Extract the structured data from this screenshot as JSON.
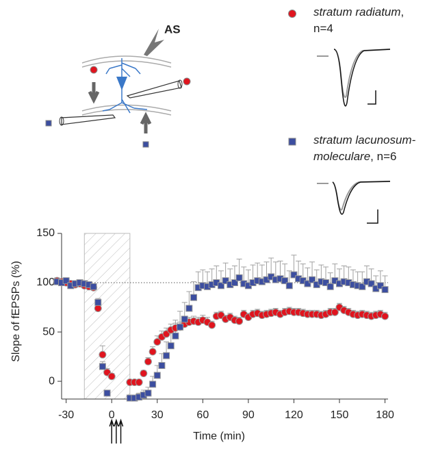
{
  "chart_data": {
    "type": "scatter",
    "y_label": "Slope of fEPSPs (%)",
    "x_label": "Time (min)",
    "schematic_label": "AS",
    "legend_separator": ",",
    "xlim": [
      -33,
      182
    ],
    "ylim": [
      -18,
      150
    ],
    "xticks": [
      -30,
      0,
      30,
      60,
      90,
      120,
      150,
      180
    ],
    "yticks": [
      0,
      50,
      100,
      150
    ],
    "reference_line": 100,
    "highlight_x": [
      -18,
      12
    ],
    "arrows_x": [
      0,
      3,
      6
    ],
    "x": [
      -36,
      -33,
      -30,
      -27,
      -24,
      -21,
      -18,
      -15,
      -12,
      -9,
      -6,
      -3,
      0,
      3,
      6,
      9,
      12,
      15,
      18,
      21,
      24,
      27,
      30,
      33,
      36,
      39,
      42,
      45,
      48,
      51,
      54,
      57,
      60,
      63,
      66,
      69,
      72,
      75,
      78,
      81,
      84,
      87,
      90,
      93,
      96,
      99,
      102,
      105,
      108,
      111,
      114,
      117,
      120,
      123,
      126,
      129,
      132,
      135,
      138,
      141,
      144,
      147,
      150,
      153,
      156,
      159,
      162,
      165,
      168,
      171,
      174,
      177,
      180
    ],
    "series": [
      {
        "name": "stratum radiatum",
        "n": "n=4",
        "color": "#e0141e",
        "marker": "circle",
        "values": [
          102,
          101,
          100,
          99,
          98,
          99,
          97,
          96,
          95,
          74,
          27,
          9,
          5,
          null,
          null,
          null,
          -1,
          -1,
          -1,
          8,
          20,
          30,
          40,
          45,
          48,
          52,
          54,
          55,
          58,
          60,
          61,
          60,
          62,
          60,
          57,
          66,
          67,
          63,
          65,
          62,
          61,
          68,
          65,
          68,
          69,
          67,
          68,
          69,
          70,
          68,
          70,
          71,
          70,
          70,
          69,
          68,
          68,
          68,
          67,
          68,
          70,
          70,
          75,
          72,
          70,
          68,
          67,
          68,
          67,
          66,
          67,
          68,
          66
        ],
        "errors": [
          3,
          3,
          3,
          3,
          3,
          3,
          3,
          3,
          3,
          4,
          9,
          4,
          3,
          null,
          null,
          null,
          2,
          2,
          2,
          3,
          4,
          5,
          6,
          6,
          6,
          6,
          5,
          5,
          5,
          5,
          5,
          5,
          5,
          5,
          4,
          4,
          4,
          4,
          4,
          4,
          4,
          4,
          4,
          4,
          4,
          4,
          4,
          4,
          4,
          4,
          4,
          4,
          4,
          4,
          4,
          4,
          4,
          4,
          4,
          4,
          4,
          4,
          4,
          4,
          4,
          4,
          4,
          4,
          4,
          4,
          4,
          4,
          4
        ]
      },
      {
        "name": "stratum lacunosum-moleculare",
        "n": "n=6",
        "color": "#3c4ea0",
        "marker": "square",
        "values": [
          101,
          100,
          102,
          97,
          99,
          100,
          99,
          98,
          96,
          80,
          15,
          -12,
          null,
          null,
          null,
          null,
          -17,
          -17,
          -16,
          -14,
          -12,
          -3,
          6,
          16,
          26,
          36,
          46,
          55,
          63,
          74,
          85,
          95,
          97,
          96,
          98,
          100,
          97,
          102,
          98,
          100,
          105,
          99,
          97,
          100,
          102,
          101,
          103,
          106,
          103,
          104,
          102,
          97,
          108,
          104,
          102,
          99,
          103,
          98,
          101,
          100,
          96,
          102,
          99,
          101,
          100,
          98,
          97,
          96,
          101,
          99,
          94,
          97,
          93
        ],
        "errors": [
          3,
          3,
          3,
          3,
          3,
          3,
          3,
          3,
          3,
          4,
          5,
          3,
          null,
          null,
          null,
          null,
          3,
          3,
          4,
          5,
          6,
          8,
          10,
          12,
          14,
          15,
          16,
          16,
          17,
          17,
          16,
          16,
          16,
          15,
          16,
          17,
          15,
          18,
          16,
          17,
          19,
          17,
          16,
          18,
          18,
          17,
          18,
          19,
          18,
          18,
          17,
          15,
          20,
          18,
          17,
          16,
          18,
          15,
          17,
          16,
          14,
          17,
          15,
          16,
          16,
          15,
          14,
          15,
          16,
          15,
          13,
          15,
          14
        ]
      }
    ]
  }
}
